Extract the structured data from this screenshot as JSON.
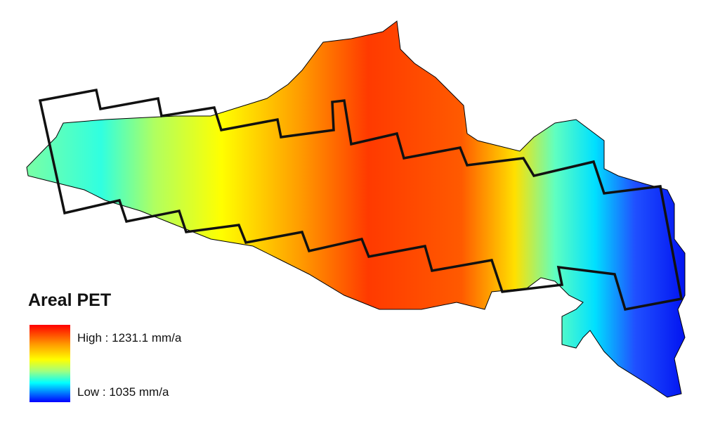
{
  "legend": {
    "title": "Areal PET",
    "high_label": "High : 1231.1 mm/a",
    "low_label": "Low : 1035 mm/a"
  }
}
